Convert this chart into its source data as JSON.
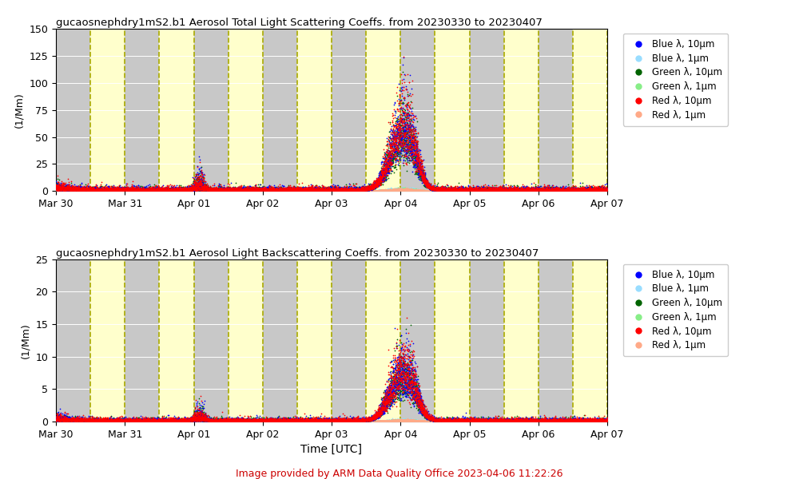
{
  "title1": "gucaosnephdry1mS2.b1 Aerosol Total Light Scattering Coeffs. from 20230330 to 20230407",
  "title2": "gucaosnephdry1mS2.b1 Aerosol Light Backscattering Coeffs. from 20230330 to 20230407",
  "xlabel": "Time [UTC]",
  "ylabel1": "(1/Mm)",
  "ylabel2": "(1/Mm)",
  "ylim1": [
    0,
    150
  ],
  "ylim2": [
    0,
    25
  ],
  "yticks1": [
    0,
    25,
    50,
    75,
    100,
    125,
    150
  ],
  "yticks2": [
    0,
    5,
    10,
    15,
    20,
    25
  ],
  "footer": "Image provided by ARM Data Quality Office 2023-04-06 11:22:26",
  "footer_color": "#cc0000",
  "night_color": "#c8c8c8",
  "day_color": "#ffffcc",
  "legend_labels": [
    "Blue λ, 10μm",
    "Blue λ, 1μm",
    "Green λ, 10μm",
    "Green λ, 1μm",
    "Red λ, 10μm",
    "Red λ, 1μm"
  ],
  "legend_colors": [
    "#0000ff",
    "#99ddff",
    "#006400",
    "#88ee88",
    "#ff0000",
    "#ffaa88"
  ],
  "dashed_line_color": "#aaaa00",
  "seed": 42,
  "total_hours": 192,
  "xtick_hours": [
    0,
    24,
    48,
    72,
    96,
    120,
    144,
    168,
    192
  ],
  "xtick_labels": [
    "Mar 30",
    "Mar 31",
    "Apr 01",
    "Apr 02",
    "Apr 03",
    "Apr 04",
    "Apr 05",
    "Apr 06",
    "Apr 07"
  ],
  "peak_hour": 120
}
